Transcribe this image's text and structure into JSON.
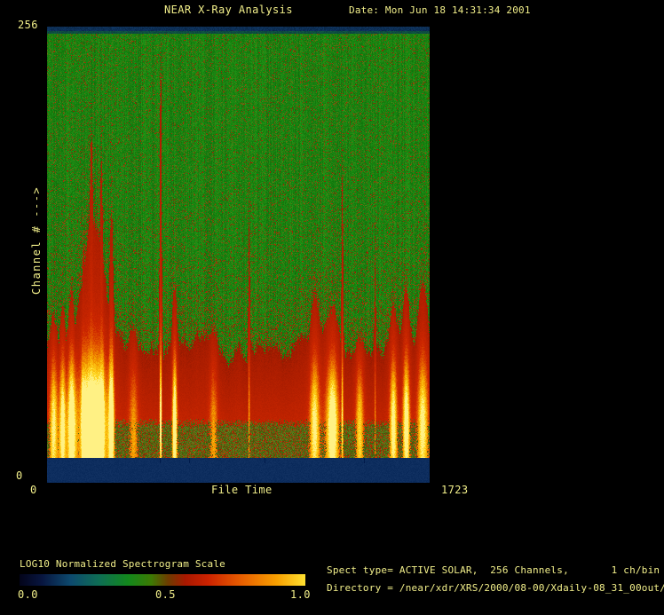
{
  "theme": {
    "background": "#000000",
    "text_color": "#f2ef8a"
  },
  "header": {
    "title": "NEAR X-Ray Analysis",
    "date": "Date: Mon Jun 18 14:31:34 2001"
  },
  "plot": {
    "y_axis": {
      "max_label": "256",
      "title": "Channel # --->",
      "min_label": "0"
    },
    "x_axis": {
      "min_label": "0",
      "title": "File Time",
      "max_label": "1723"
    }
  },
  "colorbar": {
    "title": "LOG10 Normalized Spectrogram Scale",
    "ticks": [
      "0.0",
      "0.5",
      "1.0"
    ]
  },
  "info": {
    "spect_line": "Spect type= ACTIVE SOLAR,  256 Channels,       1 ch/bin",
    "directory_line": "Directory = /near/xdr/XRS/2000/08-00/Xdaily-08_31_00out/"
  },
  "chart_data": {
    "type": "heatmap",
    "title": "NEAR X-Ray Analysis",
    "date": "Mon Jun 18 14:31:34 2001",
    "xlabel": "File Time",
    "ylabel": "Channel #",
    "xlim": [
      0,
      1723
    ],
    "ylim": [
      0,
      256
    ],
    "spect_type": "ACTIVE SOLAR",
    "channels": 256,
    "channels_per_bin": 1,
    "colorbar": {
      "label": "LOG10 Normalized Spectrogram Scale",
      "range": [
        0.0,
        1.0
      ],
      "stops": [
        [
          0,
          "#03041a"
        ],
        [
          0.08,
          "#081640"
        ],
        [
          0.18,
          "#0d4a6e"
        ],
        [
          0.28,
          "#0e6e54"
        ],
        [
          0.38,
          "#12881c"
        ],
        [
          0.46,
          "#3c7a04"
        ],
        [
          0.52,
          "#6e3c00"
        ],
        [
          0.58,
          "#a81800"
        ],
        [
          0.66,
          "#cc2200"
        ],
        [
          0.78,
          "#e86000"
        ],
        [
          0.9,
          "#f8a000"
        ],
        [
          1,
          "#ffe030"
        ]
      ]
    },
    "bands": {
      "top_blank_channels": [
        253,
        256
      ],
      "bottom_blank_channels": [
        0,
        14
      ],
      "quiet_red_band_top_channel": 74,
      "noise_strip_top_channel": 36
    },
    "palette": {
      "green_base": "#1a830f",
      "red_band": "#c62400",
      "burst_yellow": "#ffd820",
      "blank_navy": "#0d2d5e",
      "top_strip_navy": "#0b2a50"
    },
    "heat_stops": [
      [
        0,
        "#6e1400"
      ],
      [
        0.25,
        "#a81c00"
      ],
      [
        0.55,
        "#cc2600"
      ],
      [
        0.7,
        "#e45c00"
      ],
      [
        0.82,
        "#f5a000"
      ],
      [
        0.93,
        "#ffd51e"
      ],
      [
        1,
        "#fff184"
      ]
    ],
    "faint_tick_times": [
      508,
      640,
      980,
      1428
    ],
    "bursts": [
      {
        "t": 30,
        "w": 26,
        "top": 95,
        "peak": 0.8
      },
      {
        "t": 70,
        "w": 20,
        "top": 100,
        "peak": 0.85
      },
      {
        "t": 110,
        "w": 26,
        "top": 112,
        "peak": 0.9
      },
      {
        "t": 165,
        "w": 12,
        "top": 140,
        "peak": 0.8
      },
      {
        "t": 210,
        "w": 90,
        "top": 150,
        "peak": 1.0
      },
      {
        "t": 200,
        "w": 14,
        "top": 200,
        "peak": 0.9
      },
      {
        "t": 245,
        "w": 12,
        "top": 185,
        "peak": 0.85
      },
      {
        "t": 290,
        "w": 16,
        "top": 150,
        "peak": 0.85
      },
      {
        "t": 390,
        "w": 30,
        "top": 88,
        "peak": 0.5
      },
      {
        "t": 512,
        "w": 7,
        "top": 245,
        "peak": 0.85
      },
      {
        "t": 575,
        "w": 16,
        "top": 108,
        "peak": 0.95
      },
      {
        "t": 750,
        "w": 26,
        "top": 92,
        "peak": 0.5
      },
      {
        "t": 910,
        "w": 6,
        "top": 185,
        "peak": 0.45
      },
      {
        "t": 1205,
        "w": 32,
        "top": 100,
        "peak": 0.8
      },
      {
        "t": 1285,
        "w": 40,
        "top": 96,
        "peak": 0.95
      },
      {
        "t": 1330,
        "w": 6,
        "top": 190,
        "peak": 0.55
      },
      {
        "t": 1408,
        "w": 26,
        "top": 86,
        "peak": 0.7
      },
      {
        "t": 1478,
        "w": 5,
        "top": 160,
        "peak": 0.4
      },
      {
        "t": 1560,
        "w": 24,
        "top": 95,
        "peak": 0.85
      },
      {
        "t": 1618,
        "w": 22,
        "top": 100,
        "peak": 0.9
      },
      {
        "t": 1692,
        "w": 34,
        "top": 108,
        "peak": 0.8
      }
    ]
  }
}
